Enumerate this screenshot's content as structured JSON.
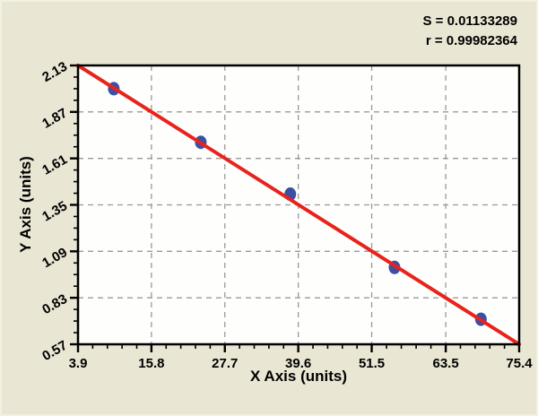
{
  "figure": {
    "stats_line_1": "S = 0.01133289",
    "stats_line_2": "r = 0.99982364"
  },
  "chart_data": {
    "type": "scatter",
    "title": "",
    "xlabel": "X Axis (units)",
    "ylabel": "Y Axis (units)",
    "xlim": [
      3.9,
      75.4
    ],
    "ylim": [
      0.57,
      2.13
    ],
    "x_ticks": [
      3.9,
      15.8,
      27.7,
      39.6,
      51.5,
      63.5,
      75.4
    ],
    "x_tick_labels": [
      "3.9",
      "15.8",
      "27.7",
      "39.6",
      "51.5",
      "63.5",
      "75.4"
    ],
    "y_ticks": [
      2.13,
      1.87,
      1.61,
      1.35,
      1.09,
      0.83,
      0.57
    ],
    "y_tick_labels": [
      "2.13",
      "1.87",
      "1.61",
      "1.35",
      "1.09",
      "0.83",
      "0.57"
    ],
    "x_minor_divisions": 5,
    "y_minor_divisions": 4,
    "grid": "dashed",
    "legend": "none",
    "annotations": {
      "S": "0.01133289",
      "r": "0.99982364"
    },
    "series": [
      {
        "name": "standard-points",
        "type": "scatter",
        "marker": "ellipse",
        "marker_color": "#3b4fa3",
        "points": [
          [
            9.7,
            2.0
          ],
          [
            23.8,
            1.7
          ],
          [
            38.3,
            1.41
          ],
          [
            55.2,
            1.0
          ],
          [
            69.2,
            0.71
          ]
        ]
      },
      {
        "name": "fit-line",
        "type": "line",
        "line_color": "#e8231c",
        "points": [
          [
            3.9,
            2.13
          ],
          [
            75.4,
            0.57
          ]
        ]
      }
    ],
    "colors": {
      "background": "#e9e6d3",
      "plot_background": "#fefefc",
      "grid": "#999999",
      "axis": "#000000",
      "text": "#000000"
    }
  }
}
